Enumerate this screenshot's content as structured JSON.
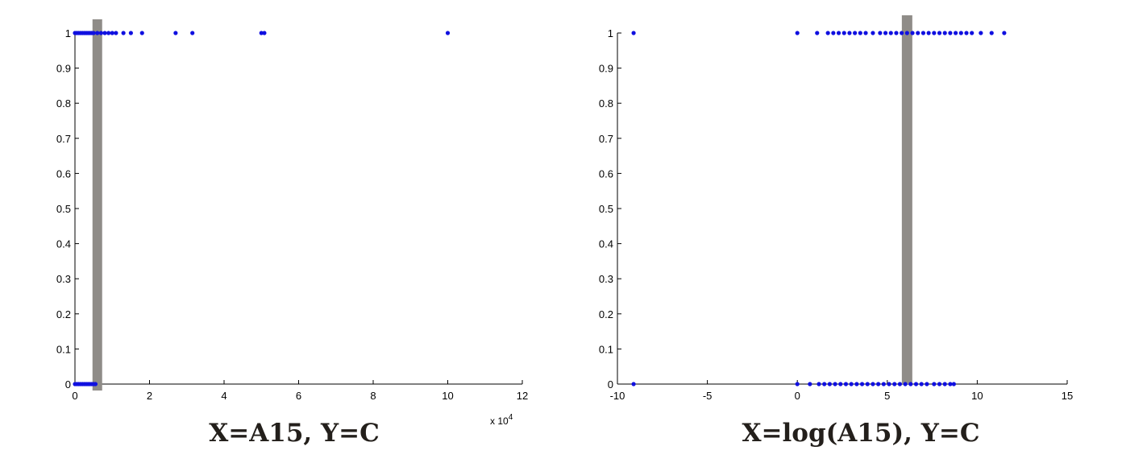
{
  "chart_data": [
    {
      "type": "scatter",
      "caption": "X=A15, Y=C",
      "xlim": [
        0,
        12
      ],
      "ylim": [
        0,
        1
      ],
      "x_multiplier_label": "x 10",
      "x_multiplier_exponent": "4",
      "xticks": [
        0,
        2,
        4,
        6,
        8,
        10,
        12
      ],
      "xtick_labels": [
        "0",
        "2",
        "4",
        "6",
        "8",
        "10",
        "12"
      ],
      "yticks": [
        0,
        0.1,
        0.2,
        0.3,
        0.4,
        0.5,
        0.6,
        0.7,
        0.8,
        0.9,
        1
      ],
      "ytick_labels": [
        "0",
        "0.1",
        "0.2",
        "0.3",
        "0.4",
        "0.5",
        "0.6",
        "0.7",
        "0.8",
        "0.9",
        "1"
      ],
      "grid": false,
      "marker_color": "#1010e0",
      "highlight": {
        "x": 0.6,
        "color": "#8f8c88"
      },
      "points": [
        {
          "x": 0.0,
          "y": 1
        },
        {
          "x": 0.05,
          "y": 1
        },
        {
          "x": 0.1,
          "y": 1
        },
        {
          "x": 0.15,
          "y": 1
        },
        {
          "x": 0.2,
          "y": 1
        },
        {
          "x": 0.25,
          "y": 1
        },
        {
          "x": 0.3,
          "y": 1
        },
        {
          "x": 0.35,
          "y": 1
        },
        {
          "x": 0.4,
          "y": 1
        },
        {
          "x": 0.45,
          "y": 1
        },
        {
          "x": 0.5,
          "y": 1
        },
        {
          "x": 0.6,
          "y": 1
        },
        {
          "x": 0.7,
          "y": 1
        },
        {
          "x": 0.8,
          "y": 1
        },
        {
          "x": 0.9,
          "y": 1
        },
        {
          "x": 1.0,
          "y": 1
        },
        {
          "x": 1.1,
          "y": 1
        },
        {
          "x": 1.3,
          "y": 1
        },
        {
          "x": 1.5,
          "y": 1
        },
        {
          "x": 1.8,
          "y": 1
        },
        {
          "x": 2.7,
          "y": 1
        },
        {
          "x": 3.15,
          "y": 1
        },
        {
          "x": 5.0,
          "y": 1
        },
        {
          "x": 5.08,
          "y": 1
        },
        {
          "x": 10.0,
          "y": 1
        },
        {
          "x": 0.0,
          "y": 0
        },
        {
          "x": 0.05,
          "y": 0
        },
        {
          "x": 0.1,
          "y": 0
        },
        {
          "x": 0.15,
          "y": 0
        },
        {
          "x": 0.2,
          "y": 0
        },
        {
          "x": 0.25,
          "y": 0
        },
        {
          "x": 0.3,
          "y": 0
        },
        {
          "x": 0.35,
          "y": 0
        },
        {
          "x": 0.4,
          "y": 0
        },
        {
          "x": 0.45,
          "y": 0
        },
        {
          "x": 0.5,
          "y": 0
        },
        {
          "x": 0.55,
          "y": 0
        }
      ]
    },
    {
      "type": "scatter",
      "caption": "X=log(A15), Y=C",
      "xlim": [
        -10,
        15
      ],
      "ylim": [
        0,
        1
      ],
      "xticks": [
        -10,
        -5,
        0,
        5,
        10,
        15
      ],
      "xtick_labels": [
        "-10",
        "-5",
        "0",
        "5",
        "10",
        "15"
      ],
      "yticks": [
        0,
        0.1,
        0.2,
        0.3,
        0.4,
        0.5,
        0.6,
        0.7,
        0.8,
        0.9,
        1
      ],
      "ytick_labels": [
        "0",
        "0.1",
        "0.2",
        "0.3",
        "0.4",
        "0.5",
        "0.6",
        "0.7",
        "0.8",
        "0.9",
        "1"
      ],
      "grid": false,
      "marker_color": "#1010e0",
      "highlight": {
        "x": 6.1,
        "color": "#8f8c88"
      },
      "points": [
        {
          "x": -9.1,
          "y": 1
        },
        {
          "x": 0.0,
          "y": 1
        },
        {
          "x": 1.1,
          "y": 1
        },
        {
          "x": 1.7,
          "y": 1
        },
        {
          "x": 2.0,
          "y": 1
        },
        {
          "x": 2.3,
          "y": 1
        },
        {
          "x": 2.6,
          "y": 1
        },
        {
          "x": 2.9,
          "y": 1
        },
        {
          "x": 3.2,
          "y": 1
        },
        {
          "x": 3.5,
          "y": 1
        },
        {
          "x": 3.8,
          "y": 1
        },
        {
          "x": 4.2,
          "y": 1
        },
        {
          "x": 4.6,
          "y": 1
        },
        {
          "x": 4.9,
          "y": 1
        },
        {
          "x": 5.2,
          "y": 1
        },
        {
          "x": 5.5,
          "y": 1
        },
        {
          "x": 5.8,
          "y": 1
        },
        {
          "x": 6.1,
          "y": 1
        },
        {
          "x": 6.4,
          "y": 1
        },
        {
          "x": 6.7,
          "y": 1
        },
        {
          "x": 7.0,
          "y": 1
        },
        {
          "x": 7.3,
          "y": 1
        },
        {
          "x": 7.6,
          "y": 1
        },
        {
          "x": 7.9,
          "y": 1
        },
        {
          "x": 8.2,
          "y": 1
        },
        {
          "x": 8.5,
          "y": 1
        },
        {
          "x": 8.8,
          "y": 1
        },
        {
          "x": 9.1,
          "y": 1
        },
        {
          "x": 9.4,
          "y": 1
        },
        {
          "x": 9.7,
          "y": 1
        },
        {
          "x": 10.2,
          "y": 1
        },
        {
          "x": 10.8,
          "y": 1
        },
        {
          "x": 11.5,
          "y": 1
        },
        {
          "x": -9.1,
          "y": 0
        },
        {
          "x": 0.0,
          "y": 0
        },
        {
          "x": 0.7,
          "y": 0
        },
        {
          "x": 1.2,
          "y": 0
        },
        {
          "x": 1.5,
          "y": 0
        },
        {
          "x": 1.8,
          "y": 0
        },
        {
          "x": 2.1,
          "y": 0
        },
        {
          "x": 2.4,
          "y": 0
        },
        {
          "x": 2.7,
          "y": 0
        },
        {
          "x": 3.0,
          "y": 0
        },
        {
          "x": 3.3,
          "y": 0
        },
        {
          "x": 3.6,
          "y": 0
        },
        {
          "x": 3.9,
          "y": 0
        },
        {
          "x": 4.2,
          "y": 0
        },
        {
          "x": 4.5,
          "y": 0
        },
        {
          "x": 4.8,
          "y": 0
        },
        {
          "x": 5.1,
          "y": 0
        },
        {
          "x": 5.4,
          "y": 0
        },
        {
          "x": 5.7,
          "y": 0
        },
        {
          "x": 6.0,
          "y": 0
        },
        {
          "x": 6.3,
          "y": 0
        },
        {
          "x": 6.6,
          "y": 0
        },
        {
          "x": 6.9,
          "y": 0
        },
        {
          "x": 7.2,
          "y": 0
        },
        {
          "x": 7.6,
          "y": 0
        },
        {
          "x": 7.9,
          "y": 0
        },
        {
          "x": 8.2,
          "y": 0
        },
        {
          "x": 8.5,
          "y": 0
        },
        {
          "x": 8.7,
          "y": 0
        }
      ]
    }
  ]
}
